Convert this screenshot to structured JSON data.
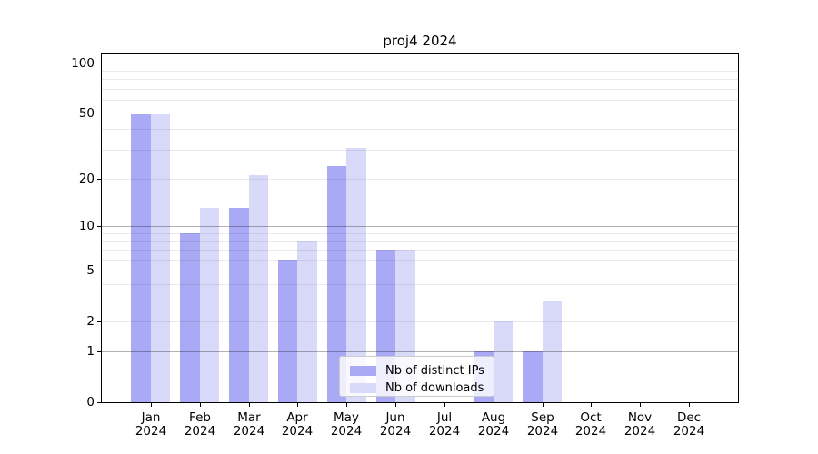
{
  "title": "proj4 2024",
  "chart_data": {
    "type": "bar",
    "title": "proj4 2024",
    "categories": [
      "Jan 2024",
      "Feb 2024",
      "Mar 2024",
      "Apr 2024",
      "May 2024",
      "Jun 2024",
      "Jul 2024",
      "Aug 2024",
      "Sep 2024",
      "Oct 2024",
      "Nov 2024",
      "Dec 2024"
    ],
    "series": [
      {
        "name": "Nb of distinct IPs",
        "color": "#a9a9f5",
        "values": [
          49,
          9,
          13,
          6,
          24,
          7,
          0,
          1,
          1,
          0,
          0,
          0
        ]
      },
      {
        "name": "Nb of downloads",
        "color": "#d9d9fa",
        "values": [
          50,
          13,
          21,
          8,
          31,
          7,
          0,
          2,
          3,
          0,
          0,
          0
        ]
      }
    ],
    "xlabel": "",
    "ylabel": "",
    "yscale": "log1p",
    "ylim": [
      0,
      114
    ],
    "yticks": [
      0,
      1,
      2,
      5,
      10,
      20,
      50,
      100
    ],
    "major_gridlines": [
      1,
      10,
      100
    ],
    "minor_gridlines": [
      2,
      3,
      4,
      5,
      6,
      7,
      8,
      9,
      20,
      30,
      40,
      50,
      60,
      70,
      80,
      90
    ],
    "grid": true,
    "legend_position": "lower center"
  },
  "legend": {
    "items": [
      {
        "label": "Nb of distinct IPs",
        "color": "#a9a9f5"
      },
      {
        "label": "Nb of downloads",
        "color": "#d9d9fa"
      }
    ]
  }
}
